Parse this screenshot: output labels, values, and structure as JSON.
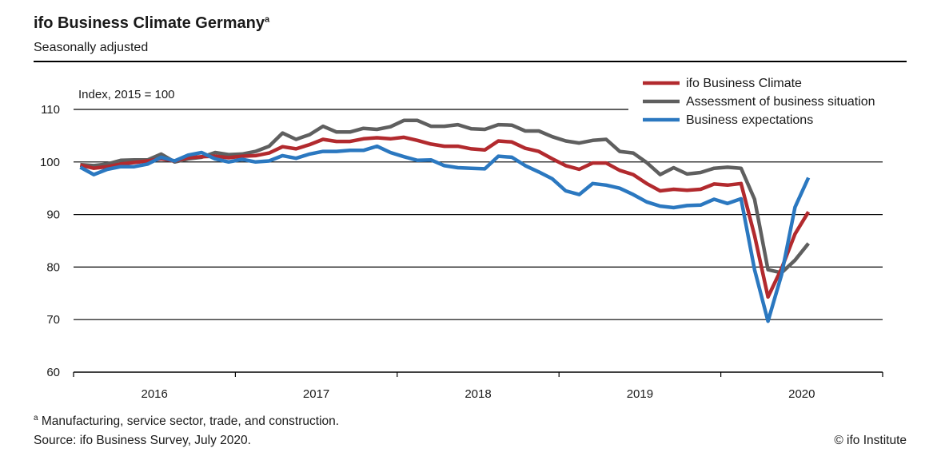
{
  "header": {
    "title": "ifo Business Climate Germany",
    "title_sup": "a",
    "subtitle": "Seasonally adjusted"
  },
  "footer": {
    "footnote_mark": "a",
    "footnote": "Manufacturing, service sector, trade, and construction.",
    "source": "Source: ifo Business Survey, July 2020.",
    "copyright": "© ifo Institute"
  },
  "chart_data": {
    "type": "line",
    "title": "ifo Business Climate Germany",
    "subtitle": "Seasonally adjusted",
    "ylabel": "Index, 2015 = 100",
    "ylim": [
      60,
      110
    ],
    "yticks": [
      60,
      70,
      80,
      90,
      100,
      110
    ],
    "year_labels": [
      "2016",
      "2017",
      "2018",
      "2019",
      "2020"
    ],
    "x": [
      "2016-01",
      "2016-02",
      "2016-03",
      "2016-04",
      "2016-05",
      "2016-06",
      "2016-07",
      "2016-08",
      "2016-09",
      "2016-10",
      "2016-11",
      "2016-12",
      "2017-01",
      "2017-02",
      "2017-03",
      "2017-04",
      "2017-05",
      "2017-06",
      "2017-07",
      "2017-08",
      "2017-09",
      "2017-10",
      "2017-11",
      "2017-12",
      "2018-01",
      "2018-02",
      "2018-03",
      "2018-04",
      "2018-05",
      "2018-06",
      "2018-07",
      "2018-08",
      "2018-09",
      "2018-10",
      "2018-11",
      "2018-12",
      "2019-01",
      "2019-02",
      "2019-03",
      "2019-04",
      "2019-05",
      "2019-06",
      "2019-07",
      "2019-08",
      "2019-09",
      "2019-10",
      "2019-11",
      "2019-12",
      "2020-01",
      "2020-02",
      "2020-03",
      "2020-04",
      "2020-05",
      "2020-06",
      "2020-07"
    ],
    "grid": true,
    "legend_position": "top-right",
    "series": [
      {
        "name": "ifo Business Climate",
        "color": "#b22a2e",
        "values": [
          99.4,
          98.8,
          99.1,
          99.6,
          99.9,
          100.2,
          100.6,
          100.2,
          100.8,
          101.0,
          101.1,
          100.8,
          101.1,
          101.2,
          101.7,
          102.9,
          102.5,
          103.3,
          104.3,
          103.9,
          103.9,
          104.4,
          104.6,
          104.4,
          104.7,
          104.1,
          103.4,
          103.0,
          103.0,
          102.5,
          102.3,
          104.0,
          103.8,
          102.6,
          102.0,
          100.6,
          99.3,
          98.6,
          99.8,
          99.8,
          98.4,
          97.6,
          95.9,
          94.5,
          94.8,
          94.6,
          94.8,
          95.8,
          95.6,
          95.9,
          86.0,
          74.3,
          79.7,
          86.3,
          90.5
        ]
      },
      {
        "name": "Assessment of business situation",
        "color": "#5f5f5f",
        "values": [
          99.5,
          99.3,
          99.6,
          100.3,
          100.4,
          100.4,
          101.5,
          100.0,
          100.6,
          100.9,
          101.8,
          101.4,
          101.5,
          102.0,
          103.0,
          105.5,
          104.3,
          105.2,
          106.8,
          105.7,
          105.7,
          106.4,
          106.2,
          106.7,
          107.9,
          107.9,
          106.8,
          106.8,
          107.1,
          106.3,
          106.2,
          107.1,
          107.0,
          105.9,
          105.9,
          104.8,
          104.0,
          103.6,
          104.1,
          104.3,
          102.0,
          101.7,
          99.9,
          97.6,
          98.9,
          97.7,
          98.0,
          98.8,
          99.0,
          98.8,
          92.9,
          79.5,
          78.9,
          81.3,
          84.5
        ]
      },
      {
        "name": "Business expectations",
        "color": "#2b78c0",
        "values": [
          99.0,
          97.6,
          98.6,
          99.1,
          99.1,
          99.6,
          100.9,
          100.2,
          101.3,
          101.8,
          100.6,
          100.0,
          100.5,
          100.0,
          100.2,
          101.2,
          100.7,
          101.5,
          102.0,
          102.0,
          102.2,
          102.2,
          103.0,
          101.8,
          101.0,
          100.3,
          100.4,
          99.3,
          98.9,
          98.8,
          98.7,
          101.1,
          100.9,
          99.3,
          98.1,
          96.8,
          94.5,
          93.8,
          95.9,
          95.6,
          95.0,
          93.8,
          92.4,
          91.6,
          91.3,
          91.7,
          91.8,
          92.9,
          92.1,
          93.0,
          79.5,
          69.7,
          78.5,
          91.4,
          97.0
        ]
      }
    ]
  }
}
